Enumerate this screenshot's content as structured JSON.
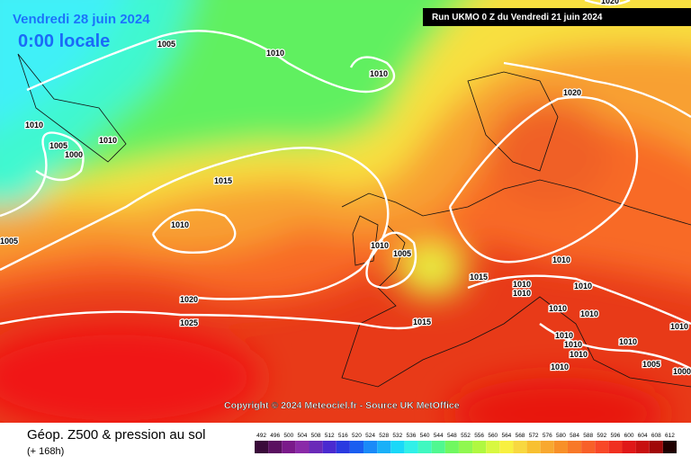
{
  "header": {
    "valid_date": "Vendredi 28 juin 2024",
    "local_time": "0:00 locale",
    "run": "Run UKMO 0 Z du Vendredi 21 juin 2024"
  },
  "copyright": "Copyright © 2024 Meteociel.fr - Source UK MetOffice",
  "footer": {
    "title": "Géop. Z500 & pression au sol",
    "lead": "(+ 168h)"
  },
  "isobar_labels": [
    "1020",
    "1005",
    "1010",
    "1010",
    "1020",
    "1010",
    "1005",
    "1000",
    "1010",
    "1015",
    "1010",
    "1005",
    "1010",
    "1005",
    "1015",
    "1010",
    "1010",
    "1010",
    "1010",
    "1010",
    "1010",
    "1020",
    "1025",
    "1015",
    "1010",
    "1010",
    "1010",
    "1010",
    "1010",
    "1010",
    "1005",
    "1000"
  ],
  "legend": {
    "labels": [
      "492",
      "496",
      "500",
      "504",
      "508",
      "512",
      "516",
      "520",
      "524",
      "528",
      "532",
      "536",
      "540",
      "544",
      "548",
      "552",
      "556",
      "560",
      "564",
      "568",
      "572",
      "576",
      "580",
      "584",
      "588",
      "592",
      "596",
      "600",
      "604",
      "608",
      "612"
    ],
    "colors": [
      "#3a0a3a",
      "#5a1060",
      "#7a1a8a",
      "#8a2aa8",
      "#6a2ab8",
      "#4a2ad0",
      "#2a3ae0",
      "#1a5ef0",
      "#1a8af8",
      "#1ab0f8",
      "#1ad8f8",
      "#30f0e8",
      "#40f8c0",
      "#50f890",
      "#70f860",
      "#90f850",
      "#b0f840",
      "#d8f840",
      "#f8f040",
      "#f8d840",
      "#f8c030",
      "#f8a830",
      "#f89028",
      "#f87828",
      "#f86028",
      "#f84828",
      "#f03020",
      "#e01818",
      "#c81010",
      "#a00808",
      "#200000"
    ]
  }
}
